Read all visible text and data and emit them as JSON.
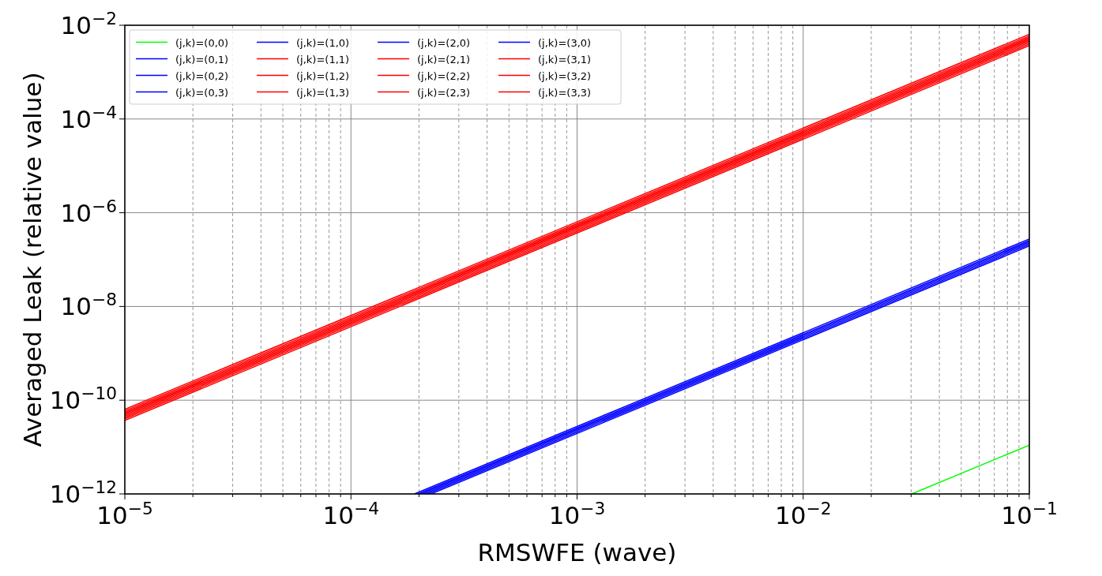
{
  "chart_data": {
    "type": "line",
    "xlabel": "RMSWFE (wave)",
    "ylabel": "Averaged Leak (relative value)",
    "log": "xy",
    "grid": true,
    "legend": "top left",
    "line_style": "solid",
    "marker": "none",
    "xlim": [
      1e-05,
      0.1
    ],
    "ylim": [
      1e-12,
      0.01
    ],
    "xticks": [
      {
        "value": 1e-05,
        "label": "10$^{−5}$"
      },
      {
        "value": 2e-05,
        "label": null
      },
      {
        "value": 3e-05,
        "label": null
      },
      {
        "value": 4e-05,
        "label": null
      },
      {
        "value": 5e-05,
        "label": null
      },
      {
        "value": 6e-05,
        "label": null
      },
      {
        "value": 7e-05,
        "label": null
      },
      {
        "value": 8e-05,
        "label": null
      },
      {
        "value": 9e-05,
        "label": null
      },
      {
        "value": 0.0001,
        "label": "10$^{−4}$"
      },
      {
        "value": 0.0002,
        "label": null
      },
      {
        "value": 0.0003,
        "label": null
      },
      {
        "value": 0.0004,
        "label": null
      },
      {
        "value": 0.0005,
        "label": null
      },
      {
        "value": 0.0006,
        "label": null
      },
      {
        "value": 0.0007,
        "label": null
      },
      {
        "value": 0.0008,
        "label": null
      },
      {
        "value": 0.0009,
        "label": null
      },
      {
        "value": 0.001,
        "label": "10$^{−3}$"
      },
      {
        "value": 0.002,
        "label": null
      },
      {
        "value": 0.003,
        "label": null
      },
      {
        "value": 0.004,
        "label": null
      },
      {
        "value": 0.005,
        "label": null
      },
      {
        "value": 0.006,
        "label": null
      },
      {
        "value": 0.007,
        "label": null
      },
      {
        "value": 0.008,
        "label": null
      },
      {
        "value": 0.009,
        "label": null
      },
      {
        "value": 0.01,
        "label": "10$^{−2}$"
      },
      {
        "value": 0.02,
        "label": null
      },
      {
        "value": 0.03,
        "label": null
      },
      {
        "value": 0.04,
        "label": null
      },
      {
        "value": 0.05,
        "label": null
      },
      {
        "value": 0.06,
        "label": null
      },
      {
        "value": 0.07,
        "label": null
      },
      {
        "value": 0.08,
        "label": null
      },
      {
        "value": 0.09,
        "label": null
      },
      {
        "value": 0.1,
        "label": "10$^{−1}$"
      }
    ],
    "yticks": [
      {
        "value": 1e-12,
        "label": "10$^{−12}$"
      },
      {
        "value": 1e-10,
        "label": "10$^{−10}$"
      },
      {
        "value": 1e-08,
        "label": "10$^{−8}$"
      },
      {
        "value": 1e-06,
        "label": "10$^{−6}$"
      },
      {
        "value": 0.0001,
        "label": "10$^{−4}$"
      },
      {
        "value": 0.01,
        "label": "10$^{−2}$"
      }
    ],
    "series": [
      {
        "name": "(j,k)=(0,0)",
        "color": "#00ff00",
        "x": [
          0.0302,
          0.1
        ],
        "values": [
          1e-12,
          1.1e-11
        ]
      },
      {
        "name": "(j,k)=(0,1)",
        "color": "#0000ff",
        "x": [
          0.000226,
          0.001,
          0.1
        ],
        "values": [
          1e-12,
          1.95e-11,
          1.95e-07
        ]
      },
      {
        "name": "(j,k)=(0,2)",
        "color": "#0000ff",
        "x": [
          0.000218,
          0.001,
          0.1
        ],
        "values": [
          1e-12,
          2.1e-11,
          2.1e-07
        ]
      },
      {
        "name": "(j,k)=(0,3)",
        "color": "#0000ff",
        "x": [
          0.000211,
          0.001,
          0.1
        ],
        "values": [
          1e-12,
          2.25e-11,
          2.25e-07
        ]
      },
      {
        "name": "(j,k)=(1,0)",
        "color": "#0000ff",
        "x": [
          0.000204,
          0.001,
          0.1
        ],
        "values": [
          1e-12,
          2.4e-11,
          2.4e-07
        ]
      },
      {
        "name": "(j,k)=(1,1)",
        "color": "#ff0000",
        "x": [
          1e-05,
          0.001,
          0.1
        ],
        "values": [
          3.7e-11,
          3.7e-07,
          0.0037
        ]
      },
      {
        "name": "(j,k)=(1,2)",
        "color": "#ff0000",
        "x": [
          1e-05,
          0.001,
          0.1
        ],
        "values": [
          4e-11,
          4e-07,
          0.004
        ]
      },
      {
        "name": "(j,k)=(1,3)",
        "color": "#ff0000",
        "x": [
          1e-05,
          0.001,
          0.1
        ],
        "values": [
          4.3e-11,
          4.3e-07,
          0.0043
        ]
      },
      {
        "name": "(j,k)=(2,0)",
        "color": "#0000ff",
        "x": [
          0.000198,
          0.001,
          0.1
        ],
        "values": [
          1e-12,
          2.55e-11,
          2.55e-07
        ]
      },
      {
        "name": "(j,k)=(2,1)",
        "color": "#ff0000",
        "x": [
          1e-05,
          0.001,
          0.1
        ],
        "values": [
          4.6e-11,
          4.6e-07,
          0.0046
        ]
      },
      {
        "name": "(j,k)=(2,2)",
        "color": "#ff0000",
        "x": [
          1e-05,
          0.001,
          0.1
        ],
        "values": [
          4.9e-11,
          4.9e-07,
          0.0049
        ]
      },
      {
        "name": "(j,k)=(2,3)",
        "color": "#ff0000",
        "x": [
          1e-05,
          0.001,
          0.1
        ],
        "values": [
          5.2e-11,
          5.2e-07,
          0.0052
        ]
      },
      {
        "name": "(j,k)=(3,0)",
        "color": "#0000ff",
        "x": [
          0.000191,
          0.001,
          0.1
        ],
        "values": [
          1e-12,
          2.75e-11,
          2.75e-07
        ]
      },
      {
        "name": "(j,k)=(3,1)",
        "color": "#ff0000",
        "x": [
          1e-05,
          0.001,
          0.1
        ],
        "values": [
          5.5e-11,
          5.5e-07,
          0.0055
        ]
      },
      {
        "name": "(j,k)=(3,2)",
        "color": "#ff0000",
        "x": [
          1e-05,
          0.001,
          0.1
        ],
        "values": [
          5.9e-11,
          5.9e-07,
          0.0059
        ]
      },
      {
        "name": "(j,k)=(3,3)",
        "color": "#ff0000",
        "x": [
          1e-05,
          0.001,
          0.1
        ],
        "values": [
          6.4e-11,
          6.4e-07,
          0.0064
        ]
      }
    ]
  }
}
